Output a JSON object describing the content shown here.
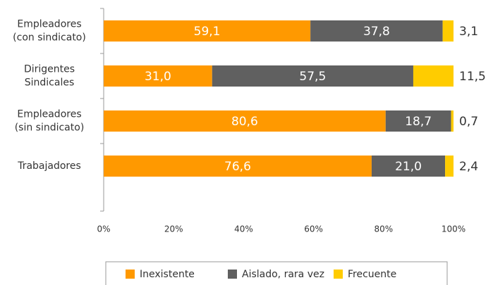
{
  "chart_data": {
    "type": "stacked-barh",
    "categories": [
      [
        "Empleadores",
        "(con sindicato)"
      ],
      [
        "Dirigentes",
        "Sindicales"
      ],
      [
        "Empleadores",
        "(sin sindicato)"
      ],
      [
        "Trabajadores"
      ]
    ],
    "series": [
      {
        "name": "Inexistente",
        "color": "#ff9900",
        "values": [
          59.1,
          31.0,
          80.6,
          76.6
        ],
        "value_labels": [
          "59,1",
          "31,0",
          "80,6",
          "76,6"
        ]
      },
      {
        "name": "Aislado, rara vez",
        "color": "#606060",
        "values": [
          37.8,
          57.5,
          18.7,
          21.0
        ],
        "value_labels": [
          "37,8",
          "57,5",
          "18,7",
          "21,0"
        ]
      },
      {
        "name": "Frecuente",
        "color": "#ffcc00",
        "values": [
          3.1,
          11.5,
          0.7,
          2.4
        ],
        "value_labels": [
          "3,1",
          "11,5",
          "0,7",
          "2,4"
        ]
      }
    ],
    "xlim": [
      0,
      100
    ],
    "xticks": [
      {
        "value": 0,
        "label": "0%"
      },
      {
        "value": 20,
        "label": "20%"
      },
      {
        "value": 40,
        "label": "40%"
      },
      {
        "value": 60,
        "label": "60%"
      },
      {
        "value": 80,
        "label": "80%"
      },
      {
        "value": 100,
        "label": "100%"
      }
    ],
    "legend": "bottom"
  }
}
